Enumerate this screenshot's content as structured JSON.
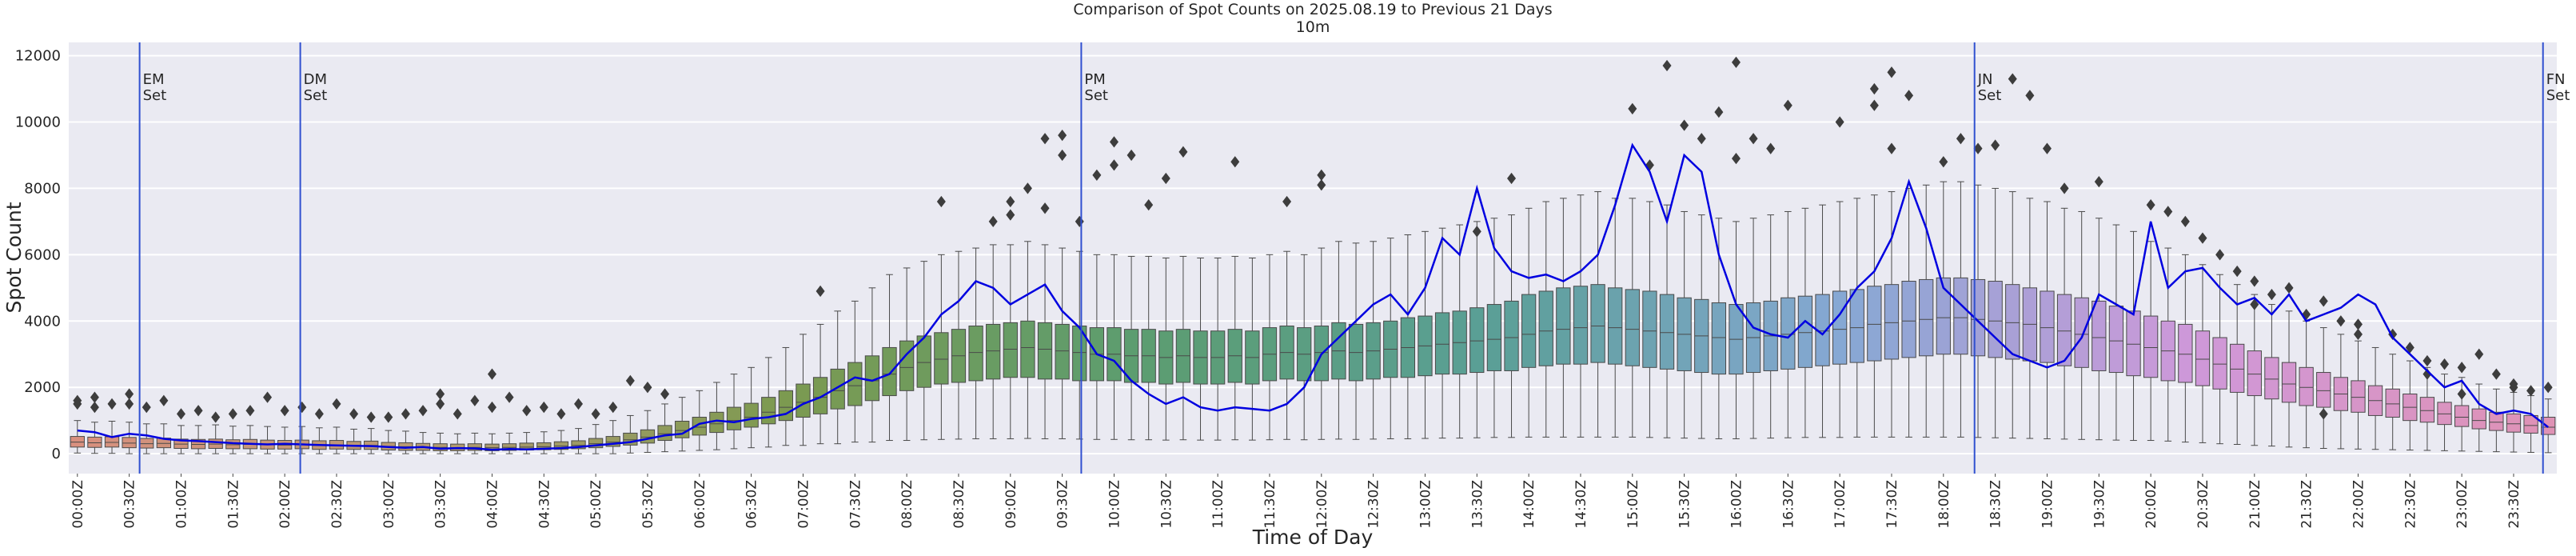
{
  "chart_data": {
    "type": "box",
    "title": "Comparison of Spot Counts on 2025.08.19 to Previous 21 Days",
    "subtitle": "10m",
    "x_label": "Time of Day",
    "y_label": "Spot Count",
    "ylim": [
      -600,
      12400
    ],
    "yticks": [
      0,
      2000,
      4000,
      6000,
      8000,
      10000,
      12000
    ],
    "grid": true,
    "palette": [
      "#d9907f",
      "#b59a74",
      "#7c9a50",
      "#5c9d70",
      "#5a9f96",
      "#86a8d4",
      "#cf98d9",
      "#df92b5"
    ],
    "categories": [
      "00:00Z",
      null,
      null,
      "00:30Z",
      null,
      null,
      "01:00Z",
      null,
      null,
      "01:30Z",
      null,
      null,
      "02:00Z",
      null,
      null,
      "02:30Z",
      null,
      null,
      "03:00Z",
      null,
      null,
      "03:30Z",
      null,
      null,
      "04:00Z",
      null,
      null,
      "04:30Z",
      null,
      null,
      "05:00Z",
      null,
      null,
      "05:30Z",
      null,
      null,
      "06:00Z",
      null,
      null,
      "06:30Z",
      null,
      null,
      "07:00Z",
      null,
      null,
      "07:30Z",
      null,
      null,
      "08:00Z",
      null,
      null,
      "08:30Z",
      null,
      null,
      "09:00Z",
      null,
      null,
      "09:30Z",
      null,
      null,
      "10:00Z",
      null,
      null,
      "10:30Z",
      null,
      null,
      "11:00Z",
      null,
      null,
      "11:30Z",
      null,
      null,
      "12:00Z",
      null,
      null,
      "12:30Z",
      null,
      null,
      "13:00Z",
      null,
      null,
      "13:30Z",
      null,
      null,
      "14:00Z",
      null,
      null,
      "14:30Z",
      null,
      null,
      "15:00Z",
      null,
      null,
      "15:30Z",
      null,
      null,
      "16:00Z",
      null,
      null,
      "16:30Z",
      null,
      null,
      "17:00Z",
      null,
      null,
      "17:30Z",
      null,
      null,
      "18:00Z",
      null,
      null,
      "18:30Z",
      null,
      null,
      "19:00Z",
      null,
      null,
      "19:30Z",
      null,
      null,
      "20:00Z",
      null,
      null,
      "20:30Z",
      null,
      null,
      "21:00Z",
      null,
      null,
      "21:30Z",
      null,
      null,
      "22:00Z",
      null,
      null,
      "22:30Z",
      null,
      null,
      "23:00Z",
      null,
      null,
      "23:30Z",
      null,
      null
    ],
    "whislo": [
      20,
      10,
      10,
      0,
      0,
      0,
      0,
      0,
      0,
      0,
      0,
      0,
      0,
      0,
      0,
      0,
      0,
      0,
      0,
      0,
      0,
      0,
      0,
      0,
      0,
      0,
      0,
      0,
      0,
      0,
      0,
      0,
      20,
      40,
      60,
      80,
      100,
      120,
      150,
      180,
      200,
      250,
      250,
      300,
      300,
      350,
      350,
      400,
      400,
      420,
      430,
      440,
      450,
      450,
      450,
      460,
      450,
      450,
      440,
      430,
      430,
      420,
      420,
      410,
      420,
      410,
      410,
      420,
      410,
      420,
      430,
      420,
      430,
      440,
      430,
      440,
      450,
      450,
      460,
      470,
      470,
      480,
      490,
      490,
      500,
      500,
      500,
      500,
      500,
      500,
      500,
      490,
      480,
      470,
      460,
      450,
      450,
      460,
      470,
      480,
      490,
      490,
      490,
      500,
      500,
      500,
      500,
      500,
      500,
      500,
      490,
      480,
      470,
      460,
      450,
      440,
      430,
      420,
      410,
      400,
      400,
      380,
      350,
      330,
      300,
      280,
      250,
      230,
      200,
      180,
      160,
      150,
      140,
      130,
      120,
      110,
      100,
      90,
      80,
      70,
      60,
      50,
      40,
      30
    ],
    "q1": [
      200,
      190,
      200,
      180,
      170,
      180,
      160,
      150,
      160,
      150,
      150,
      140,
      140,
      150,
      130,
      140,
      130,
      130,
      110,
      100,
      100,
      90,
      90,
      100,
      90,
      100,
      110,
      120,
      130,
      150,
      180,
      220,
      260,
      320,
      400,
      480,
      560,
      640,
      720,
      800,
      900,
      1000,
      1100,
      1200,
      1350,
      1450,
      1600,
      1750,
      1900,
      2000,
      2100,
      2150,
      2200,
      2250,
      2300,
      2300,
      2250,
      2250,
      2200,
      2200,
      2200,
      2150,
      2150,
      2100,
      2150,
      2100,
      2100,
      2150,
      2100,
      2200,
      2250,
      2200,
      2200,
      2250,
      2200,
      2250,
      2300,
      2300,
      2350,
      2400,
      2400,
      2450,
      2500,
      2500,
      2600,
      2650,
      2700,
      2700,
      2750,
      2700,
      2650,
      2600,
      2550,
      2500,
      2450,
      2400,
      2400,
      2450,
      2500,
      2550,
      2600,
      2650,
      2700,
      2750,
      2800,
      2850,
      2900,
      2950,
      3000,
      3000,
      2950,
      2900,
      2850,
      2800,
      2750,
      2650,
      2600,
      2500,
      2450,
      2350,
      2300,
      2200,
      2150,
      2050,
      1950,
      1850,
      1750,
      1650,
      1550,
      1450,
      1400,
      1300,
      1250,
      1150,
      1100,
      1000,
      950,
      880,
      820,
      750,
      700,
      650,
      620,
      580
    ],
    "med": [
      350,
      330,
      340,
      320,
      300,
      310,
      290,
      280,
      290,
      270,
      280,
      270,
      260,
      270,
      250,
      260,
      240,
      250,
      220,
      210,
      200,
      190,
      180,
      190,
      180,
      190,
      200,
      210,
      230,
      250,
      300,
      350,
      420,
      500,
      600,
      700,
      800,
      900,
      1000,
      1100,
      1250,
      1400,
      1550,
      1700,
      1900,
      2050,
      2200,
      2400,
      2600,
      2750,
      2850,
      2950,
      3050,
      3100,
      3150,
      3200,
      3150,
      3100,
      3050,
      3000,
      3000,
      2950,
      2950,
      2900,
      2950,
      2900,
      2900,
      2950,
      2900,
      3000,
      3050,
      3000,
      3050,
      3100,
      3050,
      3100,
      3150,
      3200,
      3250,
      3300,
      3350,
      3400,
      3450,
      3500,
      3600,
      3700,
      3750,
      3800,
      3850,
      3800,
      3750,
      3700,
      3650,
      3600,
      3550,
      3500,
      3450,
      3500,
      3550,
      3600,
      3650,
      3700,
      3750,
      3800,
      3900,
      3950,
      4000,
      4050,
      4100,
      4100,
      4050,
      4000,
      3950,
      3900,
      3800,
      3700,
      3600,
      3500,
      3400,
      3300,
      3200,
      3100,
      3000,
      2850,
      2700,
      2550,
      2400,
      2250,
      2100,
      2000,
      1900,
      1800,
      1700,
      1600,
      1500,
      1400,
      1300,
      1200,
      1100,
      1000,
      950,
      900,
      850,
      800
    ],
    "q3": [
      520,
      500,
      510,
      490,
      460,
      470,
      440,
      430,
      440,
      420,
      430,
      410,
      400,
      410,
      390,
      400,
      370,
      380,
      340,
      330,
      310,
      300,
      290,
      300,
      290,
      300,
      320,
      330,
      360,
      390,
      460,
      520,
      620,
      720,
      850,
      980,
      1100,
      1250,
      1400,
      1520,
      1700,
      1900,
      2100,
      2300,
      2550,
      2750,
      2950,
      3200,
      3400,
      3550,
      3650,
      3750,
      3850,
      3900,
      3950,
      4000,
      3950,
      3900,
      3850,
      3800,
      3800,
      3750,
      3750,
      3700,
      3750,
      3700,
      3700,
      3750,
      3700,
      3800,
      3850,
      3800,
      3850,
      3950,
      3900,
      3950,
      4000,
      4100,
      4150,
      4250,
      4300,
      4400,
      4500,
      4600,
      4800,
      4900,
      5000,
      5050,
      5100,
      5000,
      4950,
      4900,
      4800,
      4700,
      4650,
      4550,
      4500,
      4550,
      4600,
      4700,
      4750,
      4800,
      4900,
      4950,
      5050,
      5100,
      5200,
      5250,
      5300,
      5300,
      5250,
      5200,
      5100,
      5000,
      4900,
      4800,
      4700,
      4600,
      4450,
      4300,
      4150,
      4000,
      3900,
      3700,
      3500,
      3300,
      3100,
      2900,
      2750,
      2600,
      2450,
      2300,
      2200,
      2050,
      1950,
      1800,
      1700,
      1550,
      1450,
      1350,
      1250,
      1200,
      1150,
      1100
    ],
    "whishi": [
      1000,
      950,
      980,
      950,
      900,
      900,
      850,
      850,
      870,
      830,
      850,
      820,
      800,
      820,
      780,
      800,
      740,
      760,
      700,
      680,
      640,
      620,
      600,
      620,
      600,
      620,
      640,
      660,
      700,
      760,
      880,
      1000,
      1150,
      1300,
      1500,
      1700,
      1900,
      2150,
      2400,
      2600,
      2900,
      3200,
      3600,
      3900,
      4300,
      4600,
      5000,
      5400,
      5600,
      5800,
      6000,
      6100,
      6200,
      6300,
      6300,
      6400,
      6300,
      6200,
      6100,
      6000,
      6000,
      5950,
      5950,
      5900,
      5950,
      5900,
      5900,
      5950,
      5900,
      6000,
      6100,
      6000,
      6200,
      6400,
      6350,
      6400,
      6500,
      6600,
      6700,
      6800,
      6900,
      7000,
      7100,
      7200,
      7400,
      7600,
      7700,
      7800,
      7900,
      7700,
      7700,
      7600,
      7500,
      7300,
      7200,
      7100,
      7000,
      7100,
      7200,
      7300,
      7400,
      7500,
      7600,
      7700,
      7800,
      7900,
      8000,
      8100,
      8200,
      8200,
      8100,
      8000,
      7900,
      7700,
      7600,
      7400,
      7300,
      7100,
      6900,
      6700,
      6400,
      6200,
      6000,
      5700,
      5400,
      5100,
      4800,
      4500,
      4300,
      4000,
      3800,
      3600,
      3400,
      3200,
      3000,
      2800,
      2600,
      2400,
      2300,
      2100,
      1950,
      1850,
      1750,
      1650
    ],
    "fliers": [
      [
        1600,
        1500
      ],
      [
        1700,
        1400
      ],
      [
        1500
      ],
      [
        1800,
        1500
      ],
      [
        1400
      ],
      [
        1600
      ],
      [
        1200
      ],
      [
        1300
      ],
      [
        1100
      ],
      [
        1200
      ],
      [
        1300
      ],
      [
        1700
      ],
      [
        1300
      ],
      [
        1400
      ],
      [
        1200
      ],
      [
        1500
      ],
      [
        1200
      ],
      [
        1100
      ],
      [
        1100
      ],
      [
        1200
      ],
      [
        1300
      ],
      [
        1500,
        1800
      ],
      [
        1200
      ],
      [
        1600
      ],
      [
        2400,
        1400
      ],
      [
        1700
      ],
      [
        1300
      ],
      [
        1400
      ],
      [
        1200
      ],
      [
        1500
      ],
      [
        1200
      ],
      [
        1400
      ],
      [
        2200
      ],
      [
        2000
      ],
      [
        1800
      ],
      [],
      [],
      [],
      [],
      [],
      [],
      [],
      [],
      [
        4900
      ],
      [],
      [],
      [],
      [],
      [],
      [],
      [
        7600
      ],
      [],
      [],
      [
        7000
      ],
      [
        7600,
        7200
      ],
      [
        8000
      ],
      [
        9500,
        7400
      ],
      [
        9600,
        9000
      ],
      [
        7000
      ],
      [
        8400
      ],
      [
        9400,
        8700
      ],
      [
        9000
      ],
      [
        7500
      ],
      [
        8300
      ],
      [
        9100
      ],
      [],
      [],
      [
        8800
      ],
      [],
      [],
      [
        7600
      ],
      [],
      [
        8100,
        8400
      ],
      [],
      [],
      [],
      [],
      [],
      [],
      [],
      [],
      [
        6700
      ],
      [],
      [
        8300
      ],
      [],
      [],
      [],
      [],
      [],
      [],
      [
        10400
      ],
      [
        8700
      ],
      [
        11700
      ],
      [
        9900
      ],
      [
        9500
      ],
      [
        10300
      ],
      [
        11800,
        8900
      ],
      [
        9500
      ],
      [
        9200
      ],
      [
        10500
      ],
      [],
      [],
      [
        10000
      ],
      [],
      [
        11000,
        10500
      ],
      [
        11500,
        9200
      ],
      [
        10800
      ],
      [],
      [
        8800
      ],
      [
        9500
      ],
      [
        9200
      ],
      [
        9300
      ],
      [
        11300
      ],
      [
        10800
      ],
      [
        9200
      ],
      [
        8000
      ],
      [],
      [
        8200
      ],
      [],
      [],
      [
        7500
      ],
      [
        7300
      ],
      [
        7000
      ],
      [
        6500
      ],
      [
        6000
      ],
      [
        5500
      ],
      [
        5200,
        4500
      ],
      [
        4800
      ],
      [
        5000
      ],
      [
        4200
      ],
      [
        4600,
        1200
      ],
      [
        4000
      ],
      [
        3900,
        3600
      ],
      [],
      [
        3600
      ],
      [
        3200
      ],
      [
        2800,
        2400
      ],
      [
        2700
      ],
      [
        2600,
        1800
      ],
      [
        3000
      ],
      [
        2400
      ],
      [
        2100,
        2000
      ],
      [
        1900
      ],
      [
        2000
      ]
    ],
    "overlay": {
      "type": "line",
      "color": "#0000e0",
      "values": [
        700,
        650,
        500,
        600,
        550,
        450,
        400,
        380,
        350,
        320,
        300,
        280,
        300,
        280,
        260,
        250,
        240,
        230,
        200,
        180,
        200,
        150,
        170,
        160,
        120,
        140,
        130,
        150,
        170,
        200,
        250,
        300,
        350,
        450,
        550,
        600,
        900,
        1000,
        950,
        1050,
        1100,
        1200,
        1500,
        1700,
        2000,
        2300,
        2200,
        2400,
        3000,
        3500,
        4200,
        4600,
        5200,
        5000,
        4500,
        4800,
        5100,
        4300,
        3800,
        3000,
        2800,
        2200,
        1800,
        1500,
        1700,
        1400,
        1300,
        1400,
        1350,
        1300,
        1500,
        2000,
        3000,
        3500,
        4000,
        4500,
        4800,
        4200,
        5000,
        6500,
        6000,
        8000,
        6200,
        5500,
        5300,
        5400,
        5200,
        5500,
        6000,
        7500,
        9300,
        8500,
        7000,
        9000,
        8500,
        6000,
        4500,
        3800,
        3600,
        3500,
        4000,
        3600,
        4200,
        5000,
        5500,
        6500,
        8200,
        6800,
        5000,
        4500,
        4000,
        3500,
        3000,
        2800,
        2600,
        2800,
        3500,
        4800,
        4500,
        4200,
        7000,
        5000,
        5500,
        5600,
        5000,
        4500,
        4700,
        4200,
        4800,
        4000,
        4200,
        4400,
        4800,
        4500,
        3500,
        3000,
        2500,
        2000,
        2200,
        1500,
        1200,
        1300,
        1200,
        800
      ]
    },
    "vline_color": "#3050d0",
    "vlines": [
      {
        "label": [
          "EM",
          "Set"
        ],
        "x": 3.6
      },
      {
        "label": [
          "DM",
          "Set"
        ],
        "x": 12.9
      },
      {
        "label": [
          "PM",
          "Set"
        ],
        "x": 58.1
      },
      {
        "label": [
          "JN",
          "Set"
        ],
        "x": 109.8
      },
      {
        "label": [
          "FN",
          "Set"
        ],
        "x": 142.7
      }
    ]
  }
}
